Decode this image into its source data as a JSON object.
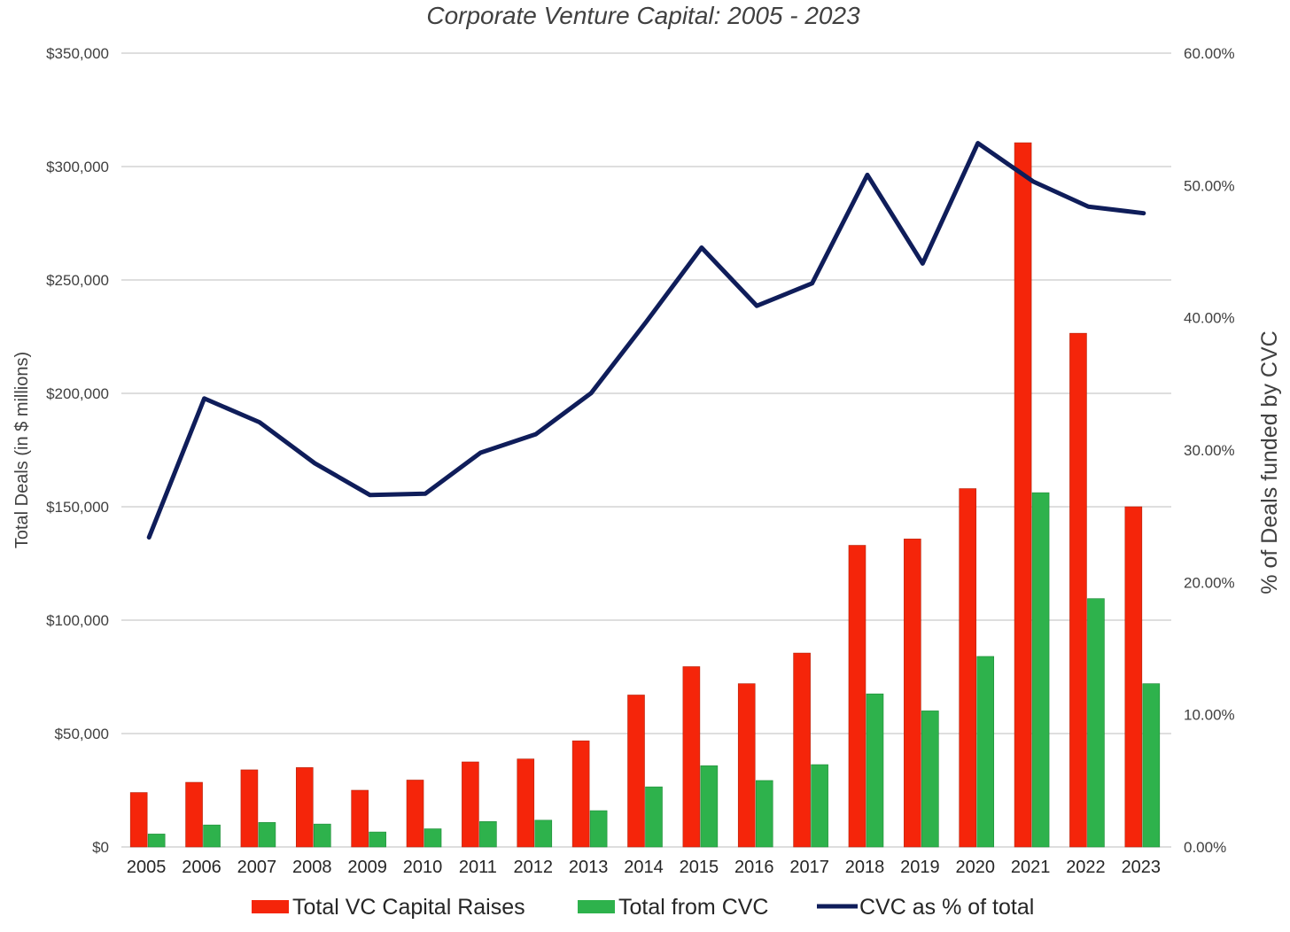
{
  "chart_data": {
    "type": "bar",
    "title": "Corporate Venture Capital: 2005 - 2023",
    "categories": [
      "2005",
      "2006",
      "2007",
      "2008",
      "2009",
      "2010",
      "2011",
      "2012",
      "2013",
      "2014",
      "2015",
      "2016",
      "2017",
      "2018",
      "2019",
      "2020",
      "2021",
      "2022",
      "2023"
    ],
    "series": [
      {
        "name": "Total VC Capital Raises",
        "kind": "bar",
        "axis": "left",
        "color": "#f5250a",
        "values": [
          24000,
          28500,
          34000,
          35000,
          25000,
          29500,
          37500,
          38800,
          46800,
          67000,
          79500,
          72000,
          85500,
          133000,
          135800,
          158000,
          310500,
          226500,
          150000
        ]
      },
      {
        "name": "Total from CVC",
        "kind": "bar",
        "axis": "left",
        "color": "#2eb24c",
        "values": [
          5700,
          9700,
          10800,
          10100,
          6600,
          8000,
          11200,
          11800,
          16000,
          26500,
          35800,
          29300,
          36300,
          67500,
          60000,
          84000,
          156200,
          109500,
          72000
        ]
      },
      {
        "name": "CVC as % of total",
        "kind": "line",
        "axis": "right",
        "color": "#0f1d5a",
        "values": [
          23.4,
          33.9,
          32.1,
          29.0,
          26.6,
          26.7,
          29.8,
          31.2,
          34.3,
          39.7,
          45.3,
          40.9,
          42.6,
          50.8,
          44.1,
          53.2,
          50.3,
          48.4,
          47.9
        ]
      }
    ],
    "ylabel": "Total Deals (in $ millions)",
    "y2label": "% of Deals funded by CVC",
    "ylim": [
      0,
      350000
    ],
    "y2lim": [
      0,
      60
    ],
    "yticks": [
      "$0",
      "$50,000",
      "$100,000",
      "$150,000",
      "$200,000",
      "$250,000",
      "$300,000",
      "$350,000"
    ],
    "y2ticks": [
      "0.00%",
      "10.00%",
      "20.00%",
      "30.00%",
      "40.00%",
      "50.00%",
      "60.00%"
    ],
    "grid": true,
    "legend": "bottom"
  }
}
